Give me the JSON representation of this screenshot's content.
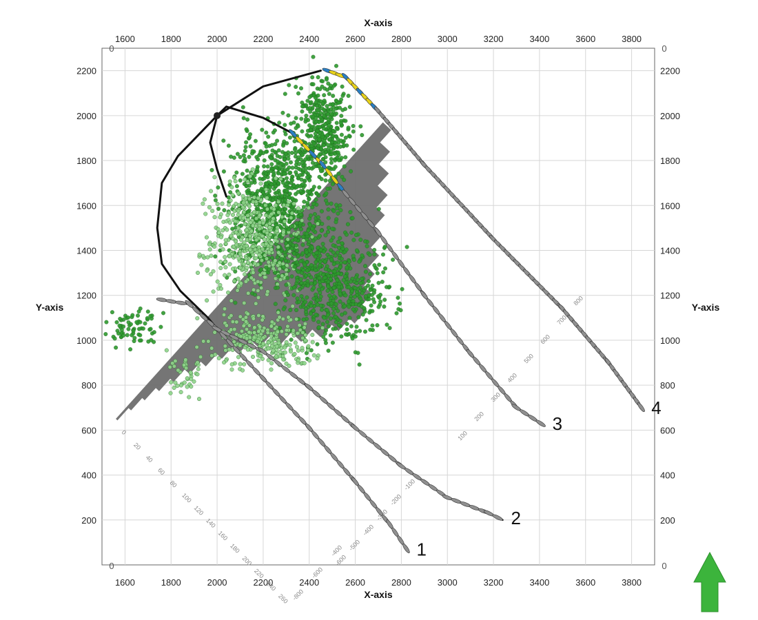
{
  "chart_data": {
    "type": "scatter",
    "title": "",
    "xlabel": "X-axis",
    "ylabel": "Y-axis",
    "xlim": [
      1500,
      3900
    ],
    "ylim": [
      0,
      2300
    ],
    "x_ticks": [
      1600,
      1800,
      2000,
      2200,
      2400,
      2600,
      2800,
      3000,
      3200,
      3400,
      3600,
      3800
    ],
    "y_ticks": [
      200,
      400,
      600,
      800,
      1000,
      1200,
      1400,
      1600,
      1800,
      2000,
      2200
    ],
    "corner_label": "0",
    "grid": true,
    "legend": "none",
    "colors": {
      "event_dark": "#2e9a2e",
      "event_light": "#8fd48a",
      "histogram": "#6e6e6e",
      "well_track": "#111111",
      "geophone_yellow": "#e8d21a",
      "geophone_blue": "#2a7fc4",
      "geophone_gray": "#909090",
      "north_arrow": "#3cb43c"
    },
    "wells": [
      {
        "label": "1",
        "path": [
          [
            1760,
            1180
          ],
          [
            1880,
            1160
          ],
          [
            2000,
            1050
          ],
          [
            2200,
            830
          ],
          [
            2400,
            610
          ],
          [
            2600,
            370
          ],
          [
            2750,
            180
          ],
          [
            2830,
            60
          ]
        ]
      },
      {
        "label": "2",
        "path": [
          [
            2000,
            1050
          ],
          [
            2200,
            950
          ],
          [
            2400,
            790
          ],
          [
            2600,
            610
          ],
          [
            2800,
            440
          ],
          [
            3000,
            300
          ],
          [
            3180,
            230
          ],
          [
            3240,
            200
          ]
        ]
      },
      {
        "label": "3",
        "path": [
          [
            2330,
            1920
          ],
          [
            2460,
            1780
          ],
          [
            2560,
            1650
          ],
          [
            2700,
            1480
          ],
          [
            2900,
            1200
          ],
          [
            3100,
            940
          ],
          [
            3300,
            700
          ],
          [
            3420,
            620
          ]
        ]
      },
      {
        "label": "4",
        "path": [
          [
            2480,
            2200
          ],
          [
            2560,
            2170
          ],
          [
            2700,
            2020
          ],
          [
            2900,
            1780
          ],
          [
            3200,
            1450
          ],
          [
            3500,
            1140
          ],
          [
            3700,
            900
          ],
          [
            3850,
            690
          ]
        ]
      }
    ],
    "monitor_well_path": [
      [
        2450,
        2200
      ],
      [
        2200,
        2130
      ],
      [
        2000,
        2000
      ],
      [
        1830,
        1820
      ],
      [
        1760,
        1700
      ],
      [
        1740,
        1500
      ],
      [
        1760,
        1340
      ],
      [
        1840,
        1220
      ],
      [
        1960,
        1100
      ],
      [
        2000,
        1050
      ]
    ],
    "monitor_branch_path": [
      [
        2000,
        2000
      ],
      [
        2040,
        2040
      ],
      [
        2200,
        1990
      ],
      [
        2330,
        1920
      ]
    ],
    "monitor_stub_path": [
      [
        2000,
        2000
      ],
      [
        1970,
        1880
      ],
      [
        2000,
        1760
      ],
      [
        2040,
        1640
      ]
    ],
    "depth_scale_left": [
      "0",
      "20",
      "40",
      "60",
      "80",
      "100",
      "120",
      "140",
      "160",
      "180",
      "200",
      "220",
      "240",
      "260"
    ],
    "depth_scale_well1": [
      "-600",
      "-500",
      "-400",
      "-300",
      "-200",
      "-100"
    ],
    "depth_scale_well2": [
      "-800",
      "-600",
      "-400"
    ],
    "depth_scale_well3": [
      "100",
      "200",
      "300",
      "400",
      "500",
      "600",
      "700",
      "800"
    ],
    "event_clusters": [
      {
        "cx": 2280,
        "cy": 1600,
        "rx": 230,
        "ry": 340,
        "n": 900,
        "tone": "dark"
      },
      {
        "cx": 2460,
        "cy": 1950,
        "rx": 120,
        "ry": 220,
        "n": 350,
        "tone": "dark"
      },
      {
        "cx": 2150,
        "cy": 1450,
        "rx": 200,
        "ry": 250,
        "n": 450,
        "tone": "light"
      },
      {
        "cx": 2520,
        "cy": 1250,
        "rx": 230,
        "ry": 260,
        "n": 500,
        "tone": "dark"
      },
      {
        "cx": 2200,
        "cy": 1000,
        "rx": 220,
        "ry": 120,
        "n": 260,
        "tone": "light"
      },
      {
        "cx": 1640,
        "cy": 1050,
        "rx": 110,
        "ry": 90,
        "n": 70,
        "tone": "dark"
      },
      {
        "cx": 1860,
        "cy": 860,
        "rx": 90,
        "ry": 120,
        "n": 40,
        "tone": "light"
      }
    ]
  }
}
